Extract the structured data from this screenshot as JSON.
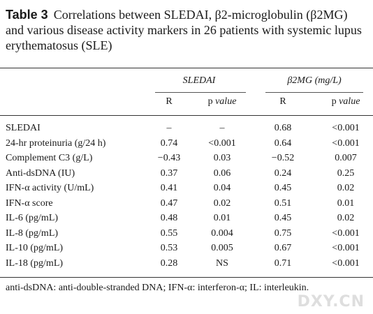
{
  "title": {
    "label": "Table 3",
    "text": "Correlations between SLEDAI, β2-microglobulin (β2MG) and various disease activity markers in 26 patients with systemic lupus erythematosus (SLE)"
  },
  "table": {
    "groups": [
      "SLEDAI",
      "β2MG (mg/L)"
    ],
    "subheaders": [
      {
        "label": "R"
      },
      {
        "label": "p",
        "qualifier": "value"
      },
      {
        "label": "R"
      },
      {
        "label": "p",
        "qualifier": "value"
      }
    ],
    "rows": [
      [
        "SLEDAI",
        "–",
        "–",
        "0.68",
        "<0.001"
      ],
      [
        "24-hr proteinuria (g/24 h)",
        "0.74",
        "<0.001",
        "0.64",
        "<0.001"
      ],
      [
        "Complement C3 (g/L)",
        "−0.43",
        "0.03",
        "−0.52",
        "0.007"
      ],
      [
        "Anti-dsDNA (IU)",
        "0.37",
        "0.06",
        "0.24",
        "0.25"
      ],
      [
        "IFN-α activity (U/mL)",
        "0.41",
        "0.04",
        "0.45",
        "0.02"
      ],
      [
        "IFN-α score",
        "0.47",
        "0.02",
        "0.51",
        "0.01"
      ],
      [
        "IL-6 (pg/mL)",
        "0.48",
        "0.01",
        "0.45",
        "0.02"
      ],
      [
        "IL-8 (pg/mL)",
        "0.55",
        "0.004",
        "0.75",
        "<0.001"
      ],
      [
        "IL-10 (pg/mL)",
        "0.53",
        "0.005",
        "0.67",
        "<0.001"
      ],
      [
        "IL-18 (pg/mL)",
        "0.28",
        "NS",
        "0.71",
        "<0.001"
      ]
    ]
  },
  "footnote": "anti-dsDNA: anti-double-stranded DNA; IFN-α: interferon-α; IL: interleukin.",
  "watermark": "DXY.CN"
}
